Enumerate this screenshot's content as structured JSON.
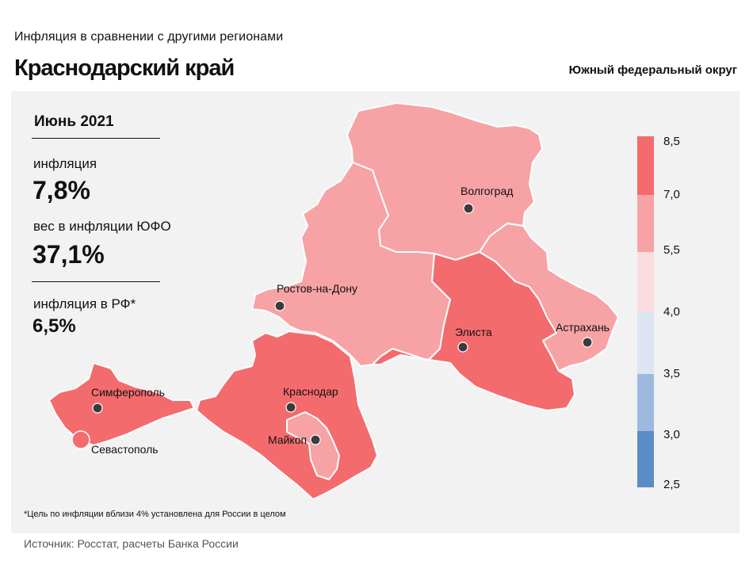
{
  "header": {
    "subtitle": "Инфляция  в сравнении  с другими  регионами",
    "title": "Краснодарский край",
    "district": "Южный федеральный округ"
  },
  "info": {
    "period": "Июнь 2021",
    "inflation_label": "инфляция",
    "inflation_value": "7,8%",
    "weight_label": "вес в инфляции  ЮФО",
    "weight_value": "37,1%",
    "rf_label": "инфляция  в РФ*",
    "rf_value": "6,5%"
  },
  "legend": {
    "ticks": [
      "8,5",
      "7,0",
      "5,5",
      "4,0",
      "3,5",
      "3,0",
      "2,5"
    ],
    "colors": [
      "#f46b6e",
      "#f7a2a5",
      "#fbdde0",
      "#dde5f3",
      "#9db9de",
      "#5b8cc8"
    ]
  },
  "regions": [
    {
      "name": "Волгоград",
      "class": "5.5–7.0",
      "color": "#f7a2a5"
    },
    {
      "name": "Ростов-на-Дону",
      "class": "5.5–7.0",
      "color": "#f7a2a5"
    },
    {
      "name": "Элиста",
      "class": "7.0–8.5",
      "color": "#f46b6e"
    },
    {
      "name": "Астрахань",
      "class": "5.5–7.0",
      "color": "#f7a2a5"
    },
    {
      "name": "Краснодар",
      "class": "7.0–8.5",
      "color": "#f46b6e"
    },
    {
      "name": "Майкоп",
      "class": "5.5–7.0",
      "color": "#f7a2a5"
    },
    {
      "name": "Симферополь",
      "class": "7.0–8.5",
      "color": "#f46b6e"
    },
    {
      "name": "Севастополь",
      "class": "7.0–8.5",
      "color": "#f46b6e"
    }
  ],
  "footnote": "*Цель по инфляции вблизи 4% установлена для России в целом",
  "source": "Источник: Росстат, расчеты Банка России"
}
